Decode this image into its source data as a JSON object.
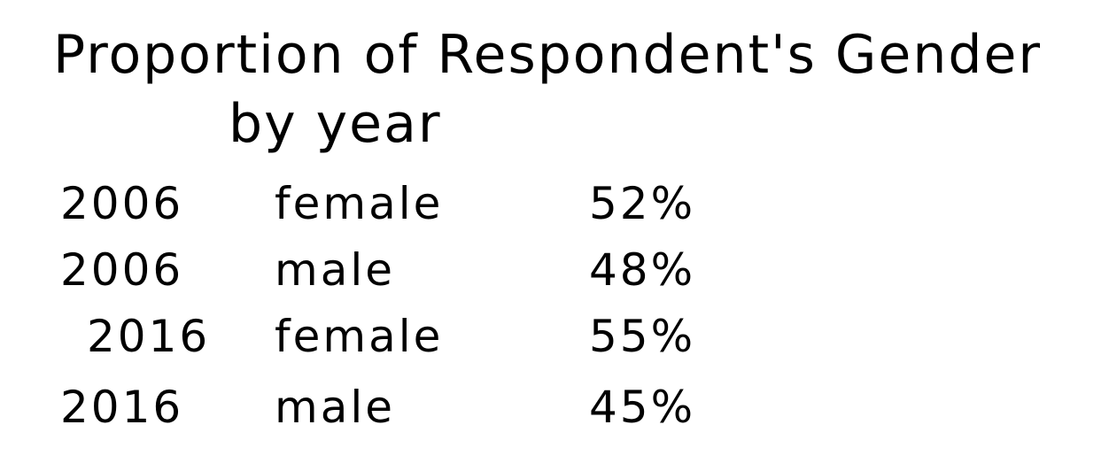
{
  "title": [
    "Proportion of Respondent's Gender",
    "by year"
  ],
  "table": {
    "rows": [
      [
        "2006",
        "female",
        "52%"
      ],
      [
        "2006",
        "male",
        "48%"
      ],
      [
        "2016",
        "female",
        "55%"
      ],
      [
        "2016",
        "male",
        "45%"
      ]
    ]
  }
}
